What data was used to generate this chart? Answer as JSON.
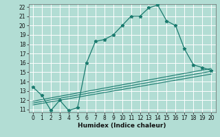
{
  "xlabel": "Humidex (Indice chaleur)",
  "background_color": "#b2ddd4",
  "grid_color": "#ffffff",
  "line_color": "#1a7a6e",
  "xlim": [
    -0.5,
    20.5
  ],
  "ylim": [
    10.7,
    22.3
  ],
  "xticks": [
    0,
    1,
    2,
    3,
    4,
    5,
    6,
    7,
    8,
    9,
    10,
    11,
    12,
    13,
    14,
    15,
    16,
    17,
    18,
    19,
    20
  ],
  "yticks": [
    11,
    12,
    13,
    14,
    15,
    16,
    17,
    18,
    19,
    20,
    21,
    22
  ],
  "main_line_x": [
    0,
    1,
    2,
    3,
    4,
    5,
    6,
    7,
    8,
    9,
    10,
    11,
    12,
    13,
    14,
    15,
    16,
    17,
    18,
    19,
    20
  ],
  "main_line_y": [
    13.4,
    12.5,
    10.9,
    12.0,
    10.9,
    11.2,
    16.0,
    18.3,
    18.5,
    19.0,
    20.0,
    21.0,
    21.0,
    21.9,
    22.2,
    20.5,
    20.0,
    17.5,
    15.8,
    15.5,
    15.2
  ],
  "ref_lines": [
    {
      "x": [
        0,
        20
      ],
      "y": [
        11.5,
        14.8
      ]
    },
    {
      "x": [
        0,
        20
      ],
      "y": [
        11.7,
        15.1
      ]
    },
    {
      "x": [
        0,
        20
      ],
      "y": [
        11.9,
        15.4
      ]
    }
  ],
  "tick_fontsize": 5.5,
  "xlabel_fontsize": 6.5
}
